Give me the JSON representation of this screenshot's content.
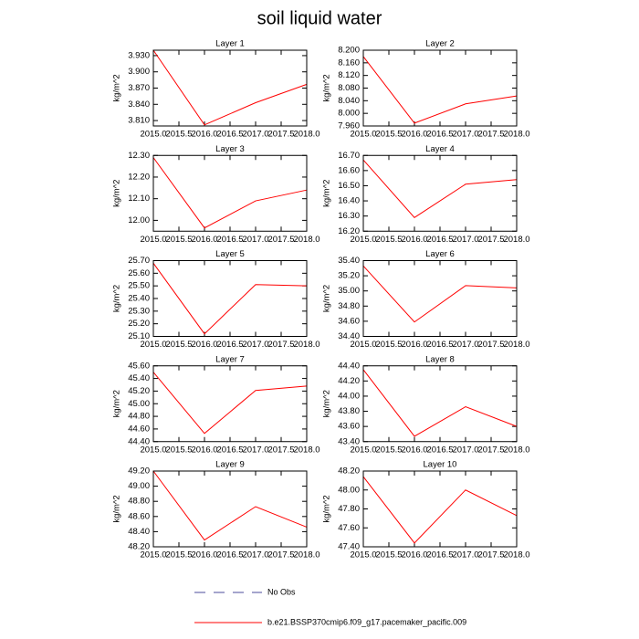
{
  "title": "soil liquid water",
  "legend": [
    {
      "name": "No Obs",
      "color": "#4b4b9b",
      "dash": true
    },
    {
      "name": "b.e21.BSSP370cmip6.f09_g17.pacemaker_pacific.009",
      "color": "#ff0000",
      "dash": false
    }
  ],
  "chart_data": [
    {
      "type": "line",
      "title": "Layer 1",
      "ylabel": "kg/m^2",
      "x": [
        2015,
        2016,
        2017,
        2018
      ],
      "values": [
        3.94,
        3.802,
        3.843,
        3.877
      ],
      "color": "#ff0000",
      "xlim": [
        2015,
        2018
      ],
      "xticks": [
        {
          "value": 2015,
          "label": "2015.0"
        },
        {
          "value": 2015.5,
          "label": "2015.5"
        },
        {
          "value": 2016,
          "label": "2016.0"
        },
        {
          "value": 2016.5,
          "label": "2016.5"
        },
        {
          "value": 2017,
          "label": "2017.0"
        },
        {
          "value": 2017.5,
          "label": "2017.5"
        },
        {
          "value": 2018,
          "label": "2018.0"
        }
      ],
      "ylim": [
        3.8,
        3.94
      ],
      "yticks": [
        {
          "value": 3.81,
          "label": "3.810"
        },
        {
          "value": 3.84,
          "label": "3.840"
        },
        {
          "value": 3.87,
          "label": "3.870"
        },
        {
          "value": 3.9,
          "label": "3.900"
        },
        {
          "value": 3.93,
          "label": "3.930"
        }
      ]
    },
    {
      "type": "line",
      "title": "Layer 2",
      "ylabel": "kg/m^2",
      "x": [
        2015,
        2016,
        2017,
        2018
      ],
      "values": [
        8.18,
        7.969,
        8.03,
        8.055
      ],
      "color": "#ff0000",
      "xlim": [
        2015,
        2018
      ],
      "xticks": [
        {
          "value": 2015,
          "label": "2015.0"
        },
        {
          "value": 2015.5,
          "label": "2015.5"
        },
        {
          "value": 2016,
          "label": "2016.0"
        },
        {
          "value": 2016.5,
          "label": "2016.5"
        },
        {
          "value": 2017,
          "label": "2017.0"
        },
        {
          "value": 2017.5,
          "label": "2017.5"
        },
        {
          "value": 2018,
          "label": "2018.0"
        }
      ],
      "ylim": [
        7.96,
        8.2
      ],
      "yticks": [
        {
          "value": 7.96,
          "label": "7.960"
        },
        {
          "value": 8.0,
          "label": "8.000"
        },
        {
          "value": 8.04,
          "label": "8.040"
        },
        {
          "value": 8.08,
          "label": "8.080"
        },
        {
          "value": 8.12,
          "label": "8.120"
        },
        {
          "value": 8.16,
          "label": "8.160"
        },
        {
          "value": 8.2,
          "label": "8.200"
        }
      ]
    },
    {
      "type": "line",
      "title": "Layer 3",
      "ylabel": "kg/m^2",
      "x": [
        2015,
        2016,
        2017,
        2018
      ],
      "values": [
        12.29,
        11.965,
        12.09,
        12.14
      ],
      "color": "#ff0000",
      "xlim": [
        2015,
        2018
      ],
      "xticks": [
        {
          "value": 2015,
          "label": "2015.0"
        },
        {
          "value": 2015.5,
          "label": "2015.5"
        },
        {
          "value": 2016,
          "label": "2016.0"
        },
        {
          "value": 2016.5,
          "label": "2016.5"
        },
        {
          "value": 2017,
          "label": "2017.0"
        },
        {
          "value": 2017.5,
          "label": "2017.5"
        },
        {
          "value": 2018,
          "label": "2018.0"
        }
      ],
      "ylim": [
        11.95,
        12.3
      ],
      "yticks": [
        {
          "value": 12.0,
          "label": "12.00"
        },
        {
          "value": 12.1,
          "label": "12.10"
        },
        {
          "value": 12.2,
          "label": "12.20"
        },
        {
          "value": 12.3,
          "label": "12.30"
        }
      ]
    },
    {
      "type": "line",
      "title": "Layer 4",
      "ylabel": "kg/m^2",
      "x": [
        2015,
        2016,
        2017,
        2018
      ],
      "values": [
        16.67,
        16.29,
        16.51,
        16.54
      ],
      "color": "#ff0000",
      "xlim": [
        2015,
        2018
      ],
      "xticks": [
        {
          "value": 2015,
          "label": "2015.0"
        },
        {
          "value": 2015.5,
          "label": "2015.5"
        },
        {
          "value": 2016,
          "label": "2016.0"
        },
        {
          "value": 2016.5,
          "label": "2016.5"
        },
        {
          "value": 2017,
          "label": "2017.0"
        },
        {
          "value": 2017.5,
          "label": "2017.5"
        },
        {
          "value": 2018,
          "label": "2018.0"
        }
      ],
      "ylim": [
        16.2,
        16.7
      ],
      "yticks": [
        {
          "value": 16.2,
          "label": "16.20"
        },
        {
          "value": 16.3,
          "label": "16.30"
        },
        {
          "value": 16.4,
          "label": "16.40"
        },
        {
          "value": 16.5,
          "label": "16.50"
        },
        {
          "value": 16.6,
          "label": "16.60"
        },
        {
          "value": 16.7,
          "label": "16.70"
        }
      ]
    },
    {
      "type": "line",
      "title": "Layer 5",
      "ylabel": "kg/m^2",
      "x": [
        2015,
        2016,
        2017,
        2018
      ],
      "values": [
        25.68,
        25.12,
        25.51,
        25.5
      ],
      "color": "#ff0000",
      "xlim": [
        2015,
        2018
      ],
      "xticks": [
        {
          "value": 2015,
          "label": "2015.0"
        },
        {
          "value": 2015.5,
          "label": "2015.5"
        },
        {
          "value": 2016,
          "label": "2016.0"
        },
        {
          "value": 2016.5,
          "label": "2016.5"
        },
        {
          "value": 2017,
          "label": "2017.0"
        },
        {
          "value": 2017.5,
          "label": "2017.5"
        },
        {
          "value": 2018,
          "label": "2018.0"
        }
      ],
      "ylim": [
        25.1,
        25.7
      ],
      "yticks": [
        {
          "value": 25.1,
          "label": "25.10"
        },
        {
          "value": 25.2,
          "label": "25.20"
        },
        {
          "value": 25.3,
          "label": "25.30"
        },
        {
          "value": 25.4,
          "label": "25.40"
        },
        {
          "value": 25.5,
          "label": "25.50"
        },
        {
          "value": 25.6,
          "label": "25.60"
        },
        {
          "value": 25.7,
          "label": "25.70"
        }
      ]
    },
    {
      "type": "line",
      "title": "Layer 6",
      "ylabel": "kg/m^2",
      "x": [
        2015,
        2016,
        2017,
        2018
      ],
      "values": [
        35.33,
        34.59,
        35.07,
        35.04
      ],
      "color": "#ff0000",
      "xlim": [
        2015,
        2018
      ],
      "xticks": [
        {
          "value": 2015,
          "label": "2015.0"
        },
        {
          "value": 2015.5,
          "label": "2015.5"
        },
        {
          "value": 2016,
          "label": "2016.0"
        },
        {
          "value": 2016.5,
          "label": "2016.5"
        },
        {
          "value": 2017,
          "label": "2017.0"
        },
        {
          "value": 2017.5,
          "label": "2017.5"
        },
        {
          "value": 2018,
          "label": "2018.0"
        }
      ],
      "ylim": [
        34.4,
        35.4
      ],
      "yticks": [
        {
          "value": 34.4,
          "label": "34.40"
        },
        {
          "value": 34.6,
          "label": "34.60"
        },
        {
          "value": 34.8,
          "label": "34.80"
        },
        {
          "value": 35.0,
          "label": "35.00"
        },
        {
          "value": 35.2,
          "label": "35.20"
        },
        {
          "value": 35.4,
          "label": "35.40"
        }
      ]
    },
    {
      "type": "line",
      "title": "Layer 7",
      "ylabel": "kg/m^2",
      "x": [
        2015,
        2016,
        2017,
        2018
      ],
      "values": [
        45.5,
        44.53,
        45.21,
        45.28
      ],
      "color": "#ff0000",
      "xlim": [
        2015,
        2018
      ],
      "xticks": [
        {
          "value": 2015,
          "label": "2015.0"
        },
        {
          "value": 2015.5,
          "label": "2015.5"
        },
        {
          "value": 2016,
          "label": "2016.0"
        },
        {
          "value": 2016.5,
          "label": "2016.5"
        },
        {
          "value": 2017,
          "label": "2017.0"
        },
        {
          "value": 2017.5,
          "label": "2017.5"
        },
        {
          "value": 2018,
          "label": "2018.0"
        }
      ],
      "ylim": [
        44.4,
        45.6
      ],
      "yticks": [
        {
          "value": 44.4,
          "label": "44.40"
        },
        {
          "value": 44.6,
          "label": "44.60"
        },
        {
          "value": 44.8,
          "label": "44.80"
        },
        {
          "value": 45.0,
          "label": "45.00"
        },
        {
          "value": 45.2,
          "label": "45.20"
        },
        {
          "value": 45.4,
          "label": "45.40"
        },
        {
          "value": 45.6,
          "label": "45.60"
        }
      ]
    },
    {
      "type": "line",
      "title": "Layer 8",
      "ylabel": "kg/m^2",
      "x": [
        2015,
        2016,
        2017,
        2018
      ],
      "values": [
        44.35,
        43.47,
        43.86,
        43.6
      ],
      "color": "#ff0000",
      "xlim": [
        2015,
        2018
      ],
      "xticks": [
        {
          "value": 2015,
          "label": "2015.0"
        },
        {
          "value": 2015.5,
          "label": "2015.5"
        },
        {
          "value": 2016,
          "label": "2016.0"
        },
        {
          "value": 2016.5,
          "label": "2016.5"
        },
        {
          "value": 2017,
          "label": "2017.0"
        },
        {
          "value": 2017.5,
          "label": "2017.5"
        },
        {
          "value": 2018,
          "label": "2018.0"
        }
      ],
      "ylim": [
        43.4,
        44.4
      ],
      "yticks": [
        {
          "value": 43.4,
          "label": "43.40"
        },
        {
          "value": 43.6,
          "label": "43.60"
        },
        {
          "value": 43.8,
          "label": "43.80"
        },
        {
          "value": 44.0,
          "label": "44.00"
        },
        {
          "value": 44.2,
          "label": "44.20"
        },
        {
          "value": 44.4,
          "label": "44.40"
        }
      ]
    },
    {
      "type": "line",
      "title": "Layer 9",
      "ylabel": "kg/m^2",
      "x": [
        2015,
        2016,
        2017,
        2018
      ],
      "values": [
        49.2,
        48.29,
        48.73,
        48.46
      ],
      "color": "#ff0000",
      "xlim": [
        2015,
        2018
      ],
      "xticks": [
        {
          "value": 2015,
          "label": "2015.0"
        },
        {
          "value": 2015.5,
          "label": "2015.5"
        },
        {
          "value": 2016,
          "label": "2016.0"
        },
        {
          "value": 2016.5,
          "label": "2016.5"
        },
        {
          "value": 2017,
          "label": "2017.0"
        },
        {
          "value": 2017.5,
          "label": "2017.5"
        },
        {
          "value": 2018,
          "label": "2018.0"
        }
      ],
      "ylim": [
        48.2,
        49.2
      ],
      "yticks": [
        {
          "value": 48.2,
          "label": "48.20"
        },
        {
          "value": 48.4,
          "label": "48.40"
        },
        {
          "value": 48.6,
          "label": "48.60"
        },
        {
          "value": 48.8,
          "label": "48.80"
        },
        {
          "value": 49.0,
          "label": "49.00"
        },
        {
          "value": 49.2,
          "label": "49.20"
        }
      ]
    },
    {
      "type": "line",
      "title": "Layer 10",
      "ylabel": "kg/m^2",
      "x": [
        2015,
        2016,
        2017,
        2018
      ],
      "values": [
        48.14,
        47.44,
        48.0,
        47.73
      ],
      "color": "#ff0000",
      "xlim": [
        2015,
        2018
      ],
      "xticks": [
        {
          "value": 2015,
          "label": "2015.0"
        },
        {
          "value": 2015.5,
          "label": "2015.5"
        },
        {
          "value": 2016,
          "label": "2016.0"
        },
        {
          "value": 2016.5,
          "label": "2016.5"
        },
        {
          "value": 2017,
          "label": "2017.0"
        },
        {
          "value": 2017.5,
          "label": "2017.5"
        },
        {
          "value": 2018,
          "label": "2018.0"
        }
      ],
      "ylim": [
        47.4,
        48.2
      ],
      "yticks": [
        {
          "value": 47.4,
          "label": "47.40"
        },
        {
          "value": 47.6,
          "label": "47.60"
        },
        {
          "value": 47.8,
          "label": "47.80"
        },
        {
          "value": 48.0,
          "label": "48.00"
        },
        {
          "value": 48.2,
          "label": "48.20"
        }
      ]
    }
  ]
}
